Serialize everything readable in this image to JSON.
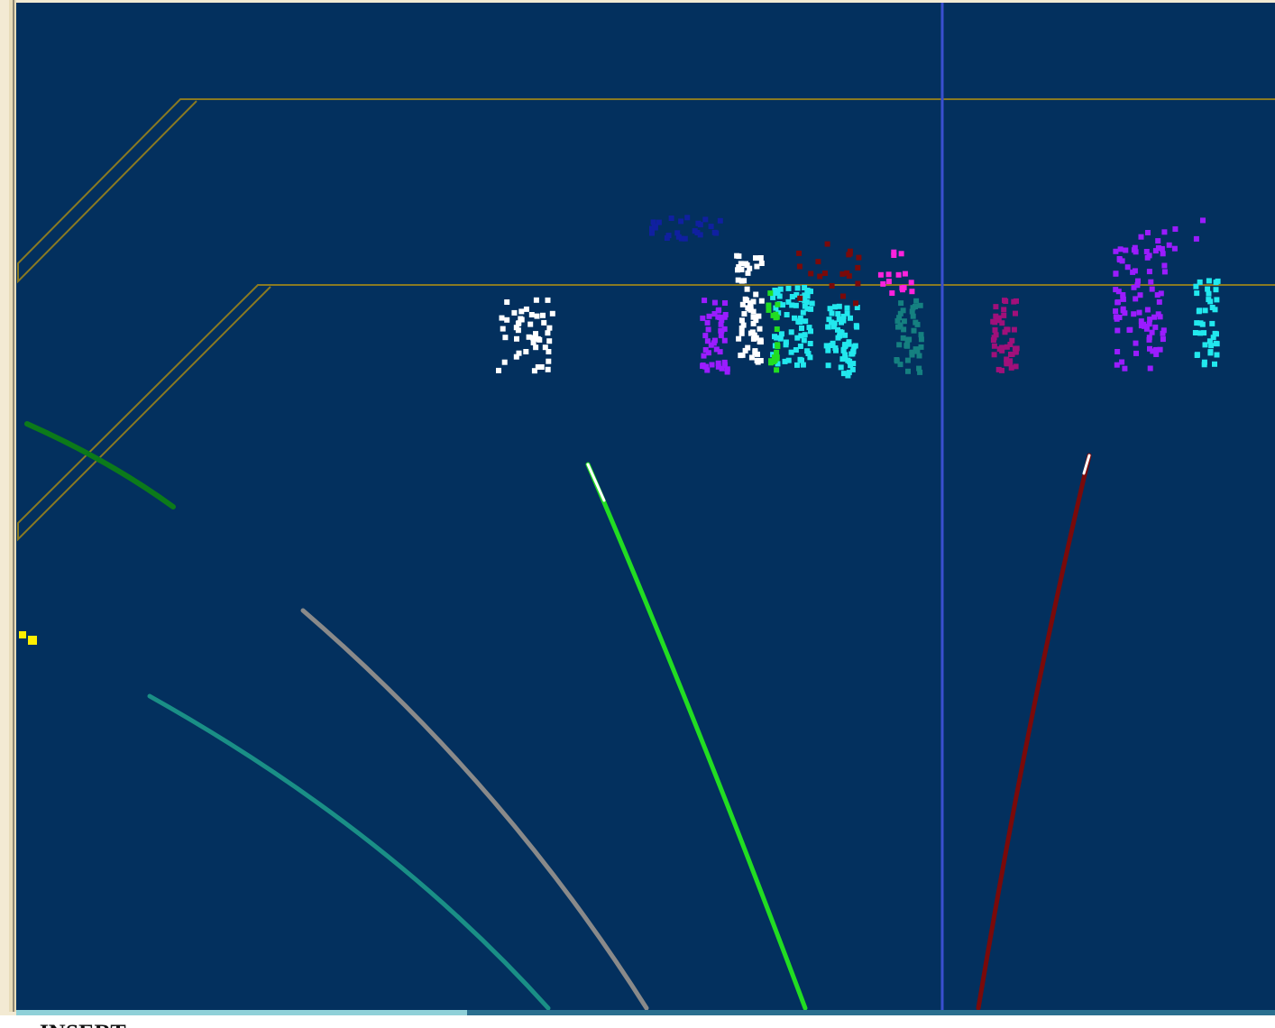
{
  "status_line": {
    "mode": "-- INSERT --"
  }
}
